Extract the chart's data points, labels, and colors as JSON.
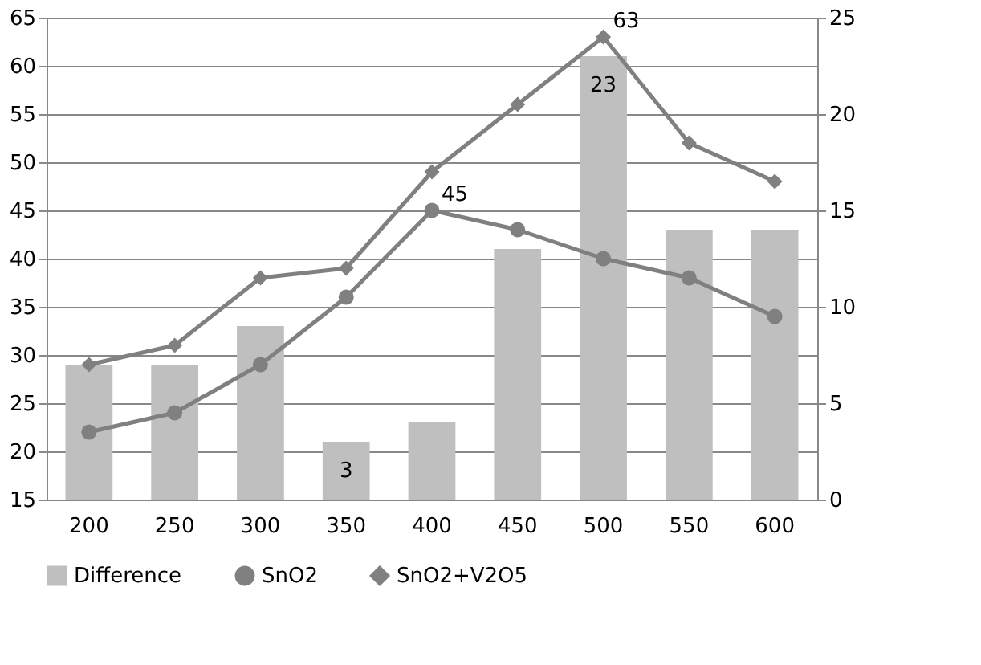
{
  "chart_data": {
    "type": "bar",
    "categories": [
      "200",
      "250",
      "300",
      "350",
      "400",
      "450",
      "500",
      "550",
      "600"
    ],
    "series": [
      {
        "name": "Difference",
        "axis": "y2",
        "color": "#bfbfbf",
        "values": [
          7,
          7,
          9,
          3,
          4,
          13,
          23,
          14,
          14
        ],
        "value_labels": [
          null,
          null,
          null,
          "3",
          null,
          null,
          "23",
          null,
          null
        ]
      },
      {
        "name": "SnO2",
        "type": "line",
        "marker": "circle",
        "color": "#808080",
        "values": [
          22,
          24,
          29,
          36,
          45,
          43,
          40,
          38,
          34
        ],
        "value_labels": [
          null,
          null,
          null,
          null,
          "45",
          null,
          null,
          null,
          null
        ]
      },
      {
        "name": "SnO2+V2O5",
        "type": "line",
        "marker": "diamond",
        "color": "#808080",
        "values": [
          29,
          31,
          38,
          39,
          49,
          56,
          63,
          52,
          48
        ],
        "value_labels": [
          null,
          null,
          null,
          null,
          null,
          null,
          "63",
          null,
          null
        ]
      }
    ],
    "ylim": [
      15,
      65
    ],
    "yticks": [
      15,
      20,
      25,
      30,
      35,
      40,
      45,
      50,
      55,
      60,
      65
    ],
    "y2lim": [
      0,
      25
    ],
    "y2ticks": [
      0,
      5,
      10,
      15,
      20,
      25
    ],
    "grid": "y",
    "legend": "bottom"
  }
}
